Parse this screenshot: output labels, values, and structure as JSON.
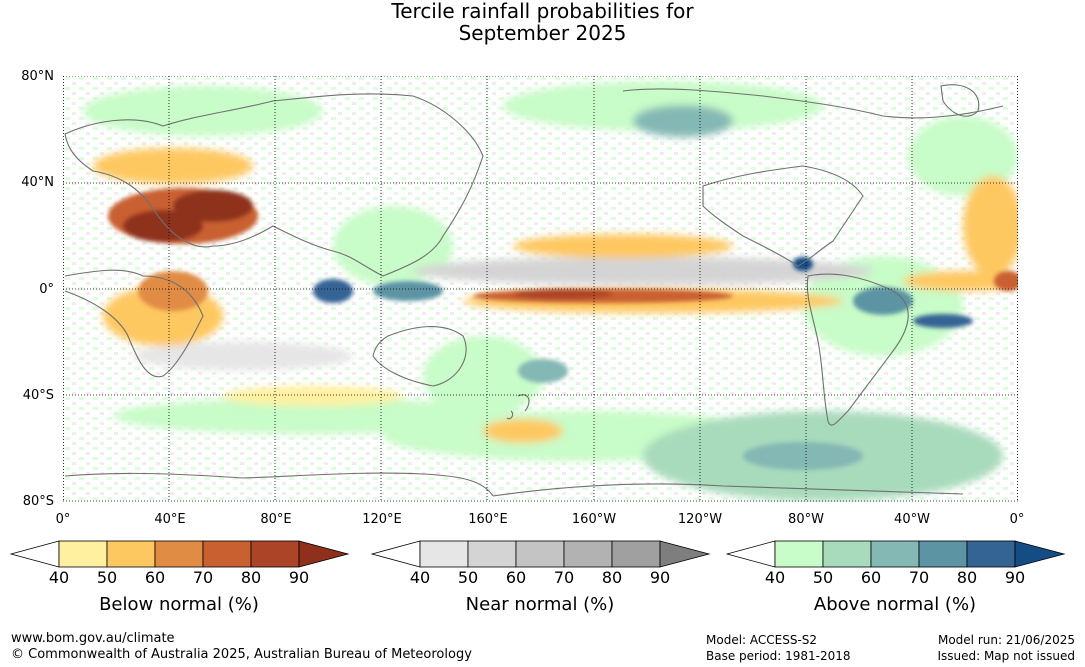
{
  "title": {
    "line1": "Tercile rainfall probabilities for",
    "line2": "September 2025"
  },
  "map": {
    "latitude_labels": [
      "80°N",
      "40°N",
      "0°",
      "40°S",
      "80°S"
    ],
    "longitude_labels": [
      "0°",
      "40°E",
      "80°E",
      "120°E",
      "160°E",
      "160°W",
      "120°W",
      "80°W",
      "40°W",
      "0°"
    ],
    "colors": {
      "land_outline": "#707070",
      "grid": "#000000"
    }
  },
  "legends": [
    {
      "title": "Below normal (%)",
      "ticks": [
        "40",
        "50",
        "60",
        "70",
        "80",
        "90"
      ],
      "colors": [
        "#ffffff",
        "#fff0a0",
        "#fec860",
        "#e08c44",
        "#c96030",
        "#ac4428",
        "#8e301c"
      ]
    },
    {
      "title": "Near normal (%)",
      "ticks": [
        "40",
        "50",
        "60",
        "70",
        "80",
        "90"
      ],
      "colors": [
        "#ffffff",
        "#e6e6e6",
        "#d4d4d4",
        "#c4c4c4",
        "#b2b2b2",
        "#a0a0a0",
        "#7e7e7e"
      ]
    },
    {
      "title": "Above normal (%)",
      "ticks": [
        "40",
        "50",
        "60",
        "70",
        "80",
        "90"
      ],
      "colors": [
        "#ffffff",
        "#c8fcc8",
        "#a8dabc",
        "#84b8b4",
        "#5c94a4",
        "#346494",
        "#144c84"
      ]
    }
  ],
  "footer": {
    "website": "www.bom.gov.au/climate",
    "copyright": "© Commonwealth of Australia 2025, Australian Bureau of Meteorology",
    "model": "Model: ACCESS-S2",
    "base_period": "Base period: 1981-2018",
    "model_run": "Model run: 21/06/2025",
    "issued": "Issued: Map not issued"
  }
}
